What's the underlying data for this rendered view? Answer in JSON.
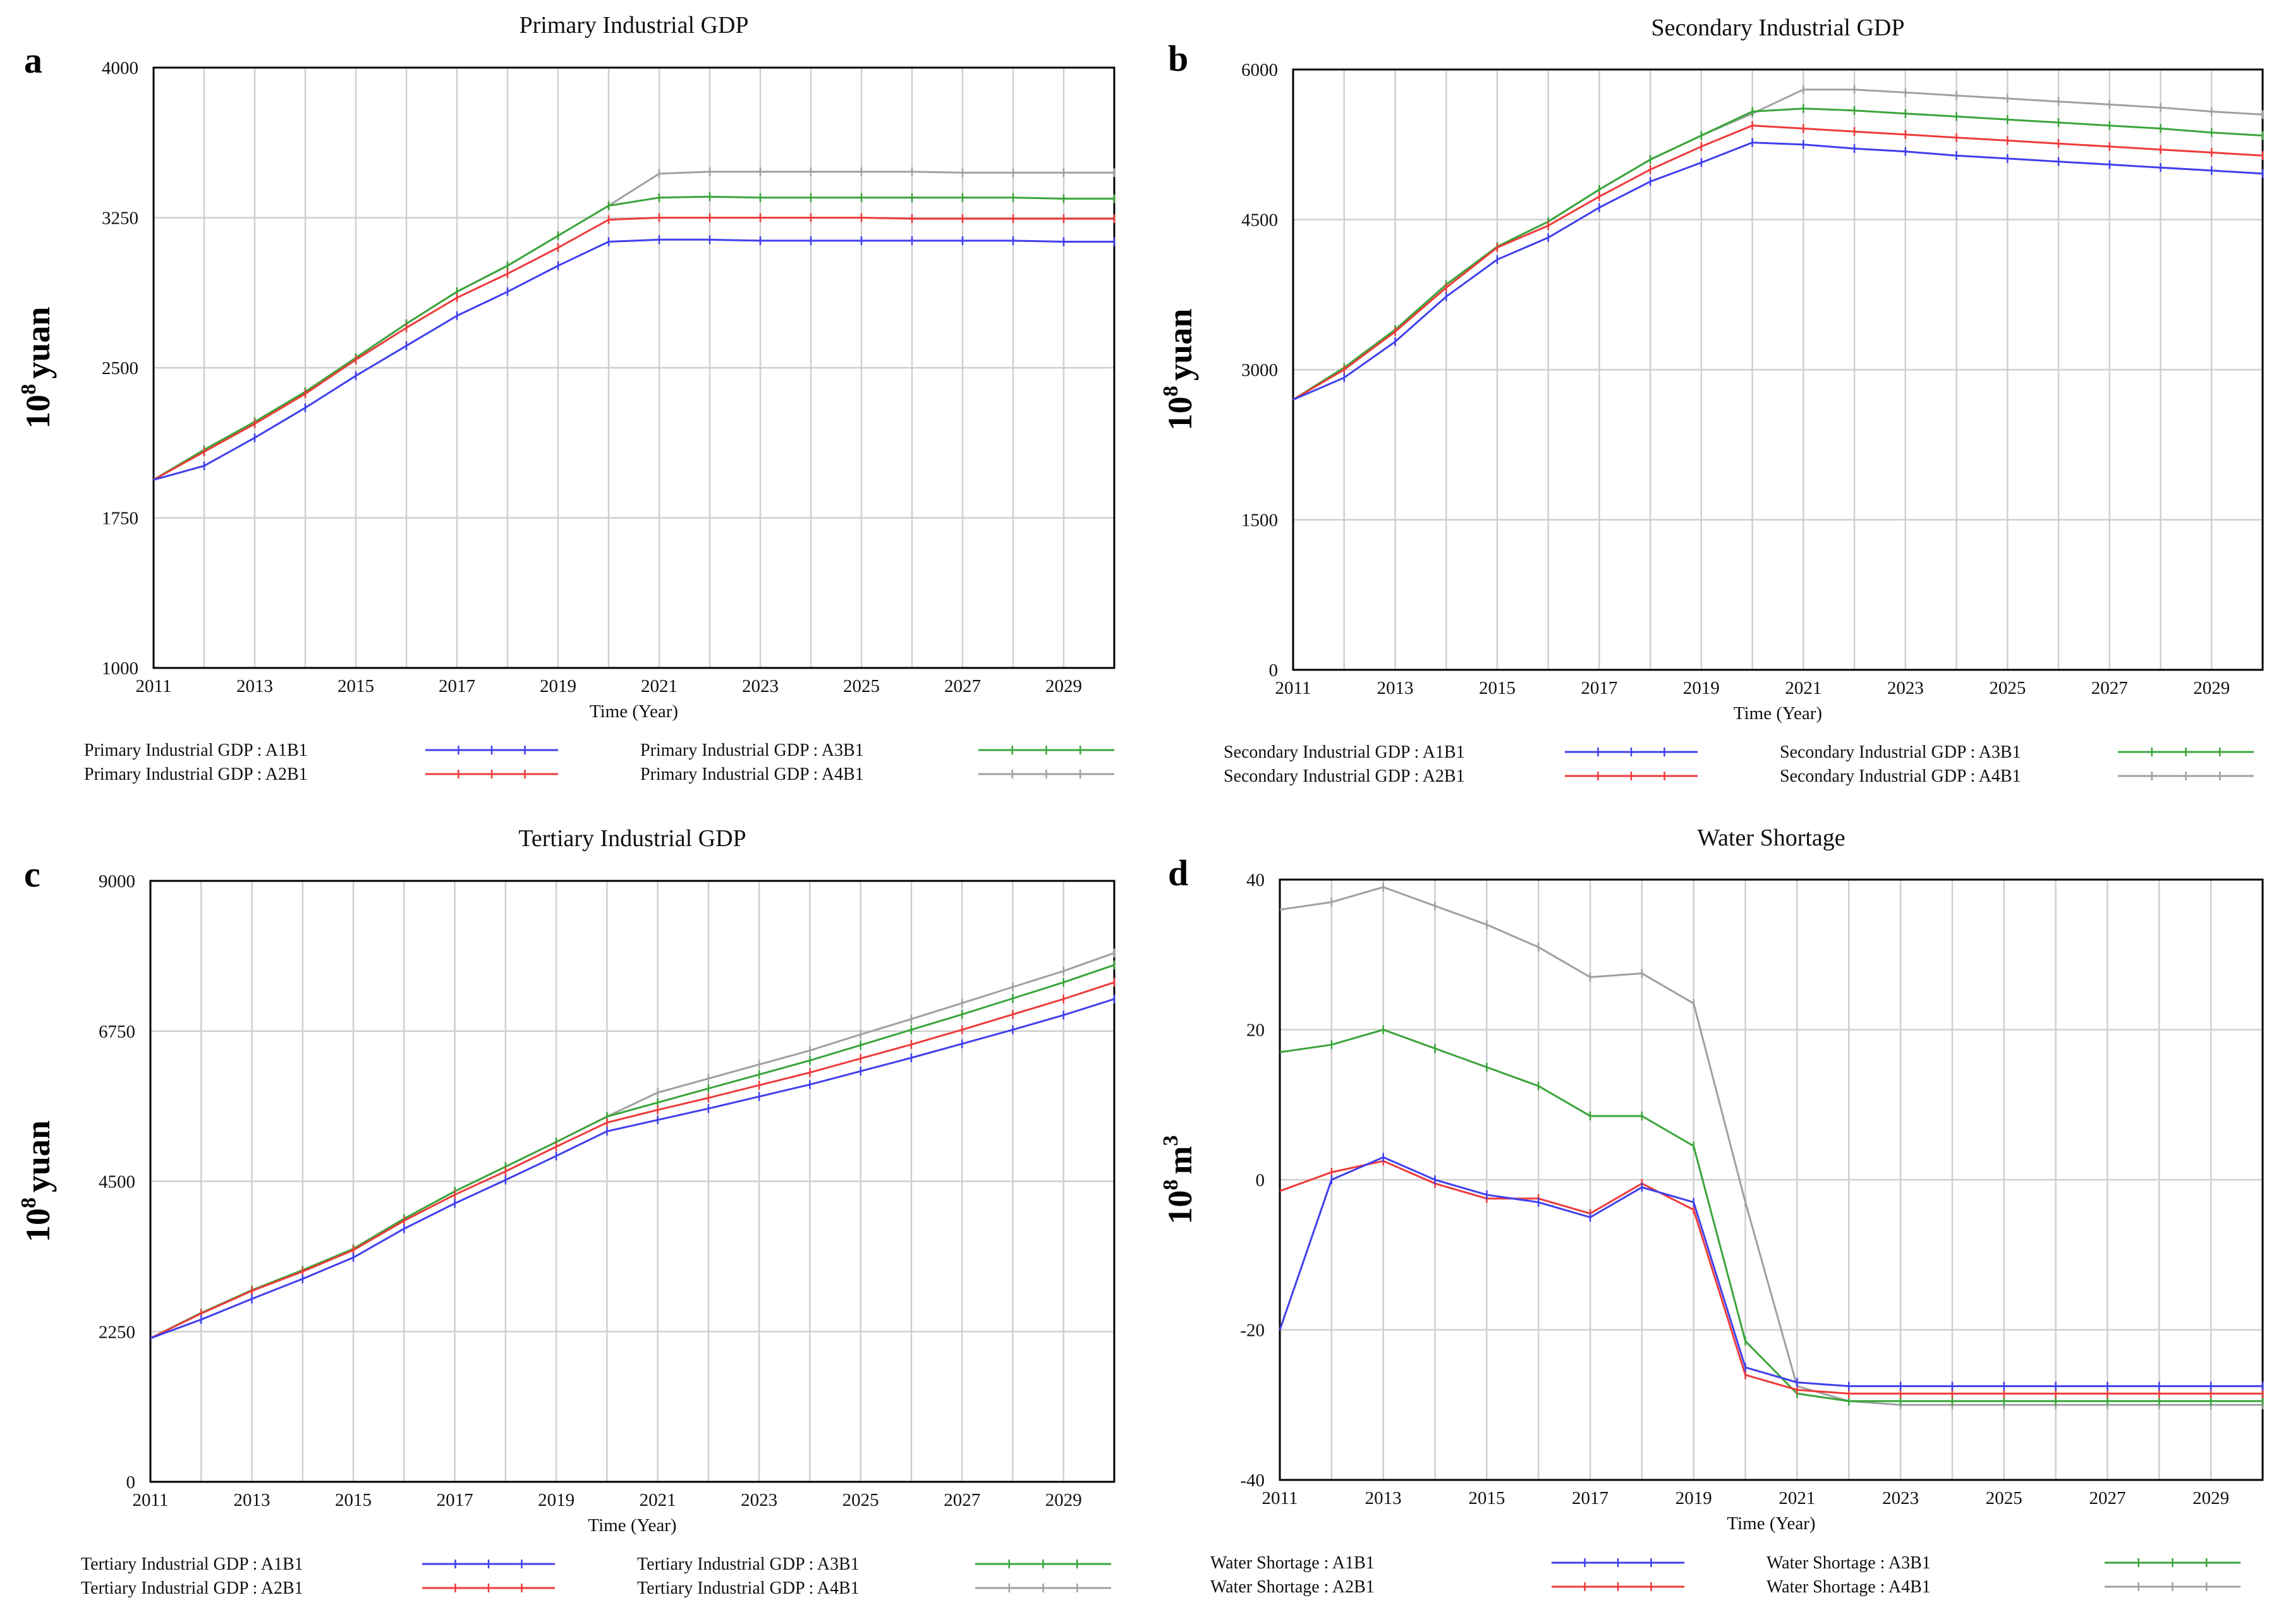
{
  "colors": {
    "A1B1": "#4040ee",
    "A2B1": "#ee3b3b",
    "A3B1": "#3aa53a",
    "A4B1": "#a0a0a0",
    "grid": "#cfcfcf",
    "frame": "#000000"
  },
  "chart_data": [
    {
      "panel": "a",
      "type": "line",
      "title": "Primary Industrial GDP",
      "xlabel": "Time (Year)",
      "ylabel": "10^8 yuan",
      "ylabel_base": "10",
      "ylabel_exp": "8",
      "ylabel_unit": "yuan",
      "xlim": [
        2011,
        2030
      ],
      "ylim": [
        1000,
        4000
      ],
      "x_ticks": [
        "2011",
        "2013",
        "2015",
        "2017",
        "2019",
        "2021",
        "2023",
        "2025",
        "2027",
        "2029"
      ],
      "y_ticks": [
        "1000",
        "1750",
        "2500",
        "3250",
        "4000"
      ],
      "x": [
        2011,
        2012,
        2013,
        2014,
        2015,
        2016,
        2017,
        2018,
        2019,
        2020,
        2021,
        2022,
        2023,
        2024,
        2025,
        2026,
        2027,
        2028,
        2029,
        2030
      ],
      "series": [
        {
          "key": "A1B1",
          "name": "Primary Industrial GDP : A1B1",
          "marker": "1",
          "values": [
            1940,
            2010,
            2150,
            2300,
            2460,
            2610,
            2760,
            2880,
            3010,
            3130,
            3140,
            3140,
            3135,
            3135,
            3135,
            3135,
            3135,
            3135,
            3130,
            3130
          ]
        },
        {
          "key": "A2B1",
          "name": "Primary Industrial GDP : A2B1",
          "marker": "2",
          "values": [
            1940,
            2080,
            2220,
            2370,
            2540,
            2700,
            2850,
            2970,
            3100,
            3240,
            3250,
            3250,
            3250,
            3250,
            3250,
            3245,
            3245,
            3245,
            3245,
            3245
          ]
        },
        {
          "key": "A3B1",
          "name": "Primary Industrial GDP : A3B1",
          "marker": "3",
          "values": [
            1940,
            2090,
            2230,
            2380,
            2550,
            2720,
            2880,
            3010,
            3160,
            3310,
            3350,
            3355,
            3350,
            3350,
            3350,
            3350,
            3350,
            3350,
            3345,
            3345
          ]
        },
        {
          "key": "A4B1",
          "name": "Primary Industrial GDP : A4B1",
          "marker": "4",
          "values": [
            1940,
            2090,
            2230,
            2380,
            2550,
            2720,
            2880,
            3010,
            3160,
            3310,
            3470,
            3480,
            3480,
            3480,
            3480,
            3480,
            3475,
            3475,
            3475,
            3475
          ]
        }
      ]
    },
    {
      "panel": "b",
      "type": "line",
      "title": "Secondary Industrial GDP",
      "xlabel": "Time (Year)",
      "ylabel": "10^8 yuan",
      "ylabel_base": "10",
      "ylabel_exp": "8",
      "ylabel_unit": "yuan",
      "xlim": [
        2011,
        2030
      ],
      "ylim": [
        0,
        6000
      ],
      "x_ticks": [
        "2011",
        "2013",
        "2015",
        "2017",
        "2019",
        "2021",
        "2023",
        "2025",
        "2027",
        "2029"
      ],
      "y_ticks": [
        "0",
        "1500",
        "3000",
        "4500",
        "6000"
      ],
      "x": [
        2011,
        2012,
        2013,
        2014,
        2015,
        2016,
        2017,
        2018,
        2019,
        2020,
        2021,
        2022,
        2023,
        2024,
        2025,
        2026,
        2027,
        2028,
        2029,
        2030
      ],
      "series": [
        {
          "key": "A1B1",
          "name": "Secondary Industrial GDP : A1B1",
          "marker": "1",
          "values": [
            2700,
            2920,
            3280,
            3730,
            4100,
            4320,
            4620,
            4880,
            5070,
            5270,
            5250,
            5210,
            5180,
            5140,
            5110,
            5080,
            5050,
            5020,
            4990,
            4960
          ]
        },
        {
          "key": "A2B1",
          "name": "Secondary Industrial GDP : A2B1",
          "marker": "2",
          "values": [
            2700,
            3000,
            3380,
            3820,
            4220,
            4440,
            4730,
            5000,
            5230,
            5440,
            5410,
            5380,
            5350,
            5320,
            5290,
            5260,
            5230,
            5200,
            5170,
            5140
          ]
        },
        {
          "key": "A3B1",
          "name": "Secondary Industrial GDP : A3B1",
          "marker": "3",
          "values": [
            2700,
            3020,
            3400,
            3850,
            4230,
            4480,
            4800,
            5100,
            5340,
            5580,
            5610,
            5590,
            5560,
            5530,
            5500,
            5470,
            5440,
            5410,
            5370,
            5340
          ]
        },
        {
          "key": "A4B1",
          "name": "Secondary Industrial GDP : A4B1",
          "marker": "4",
          "values": [
            2700,
            3020,
            3400,
            3850,
            4230,
            4480,
            4800,
            5100,
            5340,
            5560,
            5800,
            5800,
            5770,
            5740,
            5710,
            5680,
            5650,
            5620,
            5580,
            5550
          ]
        }
      ]
    },
    {
      "panel": "c",
      "type": "line",
      "title": "Tertiary Industrial GDP",
      "xlabel": "Time (Year)",
      "ylabel": "10^8 yuan",
      "ylabel_base": "10",
      "ylabel_exp": "8",
      "ylabel_unit": "yuan",
      "xlim": [
        2011,
        2030
      ],
      "ylim": [
        0,
        9000
      ],
      "x_ticks": [
        "2011",
        "2013",
        "2015",
        "2017",
        "2019",
        "2021",
        "2023",
        "2025",
        "2027",
        "2029"
      ],
      "y_ticks": [
        "0",
        "2250",
        "4500",
        "6750",
        "9000"
      ],
      "x": [
        2011,
        2012,
        2013,
        2014,
        2015,
        2016,
        2017,
        2018,
        2019,
        2020,
        2021,
        2022,
        2023,
        2024,
        2025,
        2026,
        2027,
        2028,
        2029,
        2030
      ],
      "series": [
        {
          "key": "A1B1",
          "name": "Tertiary Industrial GDP : A1B1",
          "marker": "1",
          "values": [
            2150,
            2430,
            2740,
            3040,
            3360,
            3790,
            4170,
            4520,
            4880,
            5250,
            5420,
            5590,
            5770,
            5950,
            6150,
            6350,
            6560,
            6770,
            6990,
            7230
          ]
        },
        {
          "key": "A2B1",
          "name": "Tertiary Industrial GDP : A2B1",
          "marker": "2",
          "values": [
            2150,
            2520,
            2860,
            3150,
            3470,
            3910,
            4300,
            4650,
            5020,
            5380,
            5570,
            5750,
            5940,
            6130,
            6340,
            6550,
            6770,
            7000,
            7230,
            7480
          ]
        },
        {
          "key": "A3B1",
          "name": "Tertiary Industrial GDP : A3B1",
          "marker": "3",
          "values": [
            2150,
            2530,
            2870,
            3170,
            3490,
            3940,
            4350,
            4720,
            5090,
            5470,
            5680,
            5890,
            6100,
            6310,
            6540,
            6770,
            7000,
            7240,
            7480,
            7740
          ]
        },
        {
          "key": "A4B1",
          "name": "Tertiary Industrial GDP : A4B1",
          "marker": "4",
          "values": [
            2150,
            2530,
            2870,
            3170,
            3490,
            3940,
            4350,
            4720,
            5090,
            5470,
            5830,
            6040,
            6250,
            6460,
            6700,
            6930,
            7170,
            7410,
            7650,
            7920
          ]
        }
      ]
    },
    {
      "panel": "d",
      "type": "line",
      "title": "Water Shortage",
      "xlabel": "Time (Year)",
      "ylabel": "10^8 m^3",
      "ylabel_base": "10",
      "ylabel_exp": "8",
      "ylabel_unit": "m",
      "ylabel_unit_exp": "3",
      "xlim": [
        2011,
        2030
      ],
      "ylim": [
        -40,
        40
      ],
      "x_ticks": [
        "2011",
        "2013",
        "2015",
        "2017",
        "2019",
        "2021",
        "2023",
        "2025",
        "2027",
        "2029"
      ],
      "y_ticks": [
        "-40",
        "-20",
        "0",
        "20",
        "40"
      ],
      "x": [
        2011,
        2012,
        2013,
        2014,
        2015,
        2016,
        2017,
        2018,
        2019,
        2020,
        2021,
        2022,
        2023,
        2024,
        2025,
        2026,
        2027,
        2028,
        2029,
        2030
      ],
      "series": [
        {
          "key": "A1B1",
          "name": "Water Shortage : A1B1",
          "marker": "1",
          "values": [
            -20,
            0,
            3,
            0,
            -2,
            -3,
            -5,
            -1,
            -3,
            -25,
            -27,
            -27.5,
            -27.5,
            -27.5,
            -27.5,
            -27.5,
            -27.5,
            -27.5,
            -27.5,
            -27.5
          ]
        },
        {
          "key": "A2B1",
          "name": "Water Shortage : A2B1",
          "marker": "2",
          "values": [
            -1.5,
            1,
            2.5,
            -0.5,
            -2.5,
            -2.5,
            -4.5,
            -0.5,
            -4,
            -26,
            -28,
            -28.5,
            -28.5,
            -28.5,
            -28.5,
            -28.5,
            -28.5,
            -28.5,
            -28.5,
            -28.5
          ]
        },
        {
          "key": "A3B1",
          "name": "Water Shortage : A3B1",
          "marker": "3",
          "values": [
            17,
            18,
            20,
            17.5,
            15,
            12.5,
            8.5,
            8.5,
            4.5,
            -21.5,
            -28.5,
            -29.5,
            -29.5,
            -29.5,
            -29.5,
            -29.5,
            -29.5,
            -29.5,
            -29.5,
            -29.5
          ]
        },
        {
          "key": "A4B1",
          "name": "Water Shortage : A4B1",
          "marker": "4",
          "values": [
            36,
            37,
            39,
            36.5,
            34,
            31,
            27,
            27.5,
            23.5,
            -3,
            -27.5,
            -29.5,
            -30,
            -30,
            -30,
            -30,
            -30,
            -30,
            -30,
            -30
          ]
        }
      ]
    }
  ]
}
